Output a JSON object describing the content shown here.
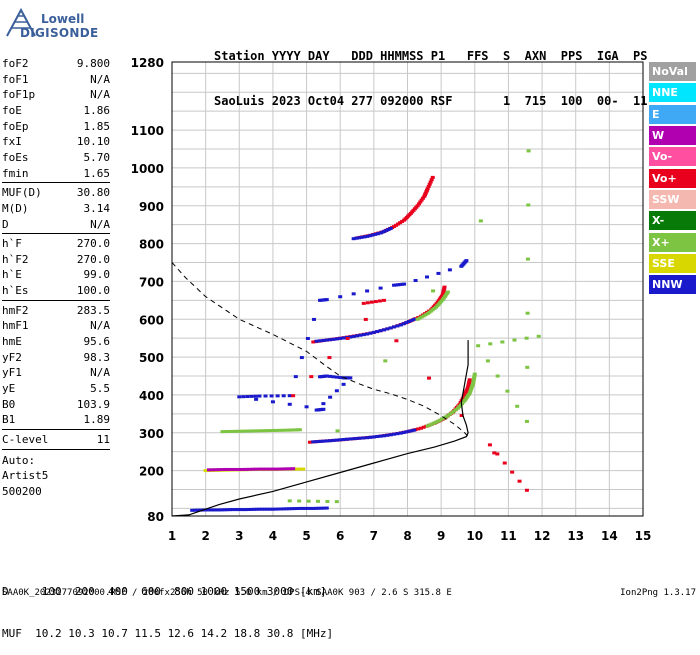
{
  "logo": {
    "line1": "Lowell",
    "line2": "DIGISONDE"
  },
  "header": {
    "row1": "Station YYYY DAY   DDD HHMMSS P1   FFS  S  AXN  PPS  IGA  PS",
    "row2": "SaoLuis 2023 Oct04 277 092000 RSF       1  715  100  00-  11"
  },
  "params": [
    {
      "k": "foF2",
      "v": "9.800"
    },
    {
      "k": "foF1",
      "v": "N/A"
    },
    {
      "k": "foF1p",
      "v": "N/A"
    },
    {
      "k": "foE",
      "v": "1.86"
    },
    {
      "k": "foEp",
      "v": "1.85"
    },
    {
      "k": "fxI",
      "v": "10.10"
    },
    {
      "k": "foEs",
      "v": "5.70"
    },
    {
      "k": "fmin",
      "v": "1.65"
    },
    {
      "k": "MUF(D)",
      "v": "30.80"
    },
    {
      "k": "M(D)",
      "v": "3.14"
    },
    {
      "k": "D",
      "v": "N/A"
    },
    {
      "k": "h`F",
      "v": "270.0"
    },
    {
      "k": "h`F2",
      "v": "270.0"
    },
    {
      "k": "h`E",
      "v": "99.0"
    },
    {
      "k": "h`Es",
      "v": "100.0"
    },
    {
      "k": "hmF2",
      "v": "283.5"
    },
    {
      "k": "hmF1",
      "v": "N/A"
    },
    {
      "k": "hmE",
      "v": "95.6"
    },
    {
      "k": "yF2",
      "v": "98.3"
    },
    {
      "k": "yF1",
      "v": "N/A"
    },
    {
      "k": "yE",
      "v": "5.5"
    },
    {
      "k": "B0",
      "v": "103.9"
    },
    {
      "k": "B1",
      "v": "1.89"
    },
    {
      "k": "C-level",
      "v": "11"
    }
  ],
  "auto": {
    "line1": "Auto:",
    "line2": "Artist5",
    "line3": "500200"
  },
  "legend": [
    {
      "label": "NoVal",
      "color": "#a0a0a0"
    },
    {
      "label": "NNE",
      "color": "#00e6ff"
    },
    {
      "label": "E",
      "color": "#3fa9f5"
    },
    {
      "label": "W",
      "color": "#b000b0"
    },
    {
      "label": "Vo-",
      "color": "#ff4fa0"
    },
    {
      "label": "Vo+",
      "color": "#e8001c"
    },
    {
      "label": "SSW",
      "color": "#f5b8b0"
    },
    {
      "label": "X-",
      "color": "#087a08"
    },
    {
      "label": "X+",
      "color": "#7cc442"
    },
    {
      "label": "SSE",
      "color": "#d8d800"
    },
    {
      "label": "NNW",
      "color": "#1a1acc"
    }
  ],
  "bottom": {
    "row1": "D     100  200  400  600  800 1000 1500 3000 [km]",
    "row2": "MUF  10.2 10.3 10.7 11.5 12.6 14.2 18.8 30.8 [MHz]"
  },
  "footer": {
    "left": "SAA0K_2023277092000.RSF / 280fx256h 50 kHz 5.0 km / DPS-4 SAA0K 903 / 2.6 S 315.8 E",
    "right": "Ion2Png 1.3.17"
  },
  "chart_data": {
    "type": "scatter",
    "xlim": [
      1,
      15
    ],
    "ylim": [
      80,
      1280
    ],
    "x_ticks": [
      1,
      2,
      3,
      4,
      5,
      6,
      7,
      8,
      9,
      10,
      11,
      12,
      13,
      14,
      15
    ],
    "y_ticks": [
      80,
      200,
      300,
      400,
      500,
      600,
      700,
      800,
      900,
      1000,
      1100,
      1280
    ],
    "grid": true,
    "profile_curve": [
      [
        1,
        80
      ],
      [
        1.5,
        83
      ],
      [
        1.9,
        95
      ],
      [
        2.4,
        110
      ],
      [
        3,
        125
      ],
      [
        4,
        145
      ],
      [
        5,
        170
      ],
      [
        6,
        195
      ],
      [
        7,
        220
      ],
      [
        8,
        245
      ],
      [
        8.8,
        262
      ],
      [
        9.4,
        278
      ],
      [
        9.75,
        290
      ],
      [
        9.8,
        300
      ],
      [
        9.75,
        320
      ],
      [
        9.65,
        345
      ],
      [
        9.6,
        380
      ],
      [
        9.7,
        430
      ],
      [
        9.8,
        480
      ],
      [
        9.8,
        545
      ]
    ],
    "mode_curve": [
      [
        1,
        750
      ],
      [
        1.4,
        710
      ],
      [
        2,
        660
      ],
      [
        3,
        600
      ],
      [
        4,
        560
      ],
      [
        5,
        515
      ],
      [
        5.6,
        475
      ],
      [
        6,
        450
      ],
      [
        6.6,
        428
      ],
      [
        7,
        415
      ],
      [
        7.5,
        403
      ],
      [
        8,
        388
      ],
      [
        8.5,
        370
      ],
      [
        9,
        345
      ],
      [
        9.4,
        322
      ],
      [
        9.7,
        300
      ],
      [
        9.8,
        290
      ]
    ],
    "traces": [
      {
        "name": "F2-1",
        "color": "#e8001c",
        "points": [
          [
            5.1,
            275
          ],
          [
            5.5,
            278
          ],
          [
            6,
            281
          ],
          [
            6.5,
            285
          ],
          [
            7,
            289
          ],
          [
            7.5,
            295
          ],
          [
            8,
            303
          ],
          [
            8.4,
            312
          ],
          [
            8.8,
            325
          ],
          [
            9.1,
            338
          ],
          [
            9.35,
            355
          ],
          [
            9.55,
            375
          ],
          [
            9.7,
            400
          ],
          [
            9.8,
            420
          ],
          [
            9.85,
            440
          ]
        ]
      },
      {
        "name": "F2-1-x",
        "color": "#7cc442",
        "points": [
          [
            8.6,
            318
          ],
          [
            8.9,
            330
          ],
          [
            9.2,
            345
          ],
          [
            9.5,
            365
          ],
          [
            9.7,
            385
          ],
          [
            9.85,
            405
          ],
          [
            9.95,
            430
          ],
          [
            10,
            455
          ]
        ]
      },
      {
        "name": "F2-1-nnw",
        "color": "#1a1acc",
        "points": [
          [
            5.2,
            276
          ],
          [
            5.7,
            279
          ],
          [
            6.2,
            283
          ],
          [
            6.8,
            287
          ],
          [
            7.3,
            292
          ],
          [
            7.8,
            299
          ],
          [
            8.2,
            307
          ]
        ]
      },
      {
        "name": "F2-2",
        "color": "#e8001c",
        "points": [
          [
            5.2,
            540
          ],
          [
            5.6,
            545
          ],
          [
            6,
            550
          ],
          [
            6.5,
            557
          ],
          [
            7,
            565
          ],
          [
            7.5,
            577
          ],
          [
            8,
            592
          ],
          [
            8.4,
            608
          ],
          [
            8.7,
            625
          ],
          [
            8.9,
            645
          ],
          [
            9.05,
            665
          ],
          [
            9.1,
            685
          ]
        ]
      },
      {
        "name": "F2-2-nnw",
        "color": "#1a1acc",
        "points": [
          [
            5.3,
            542
          ],
          [
            5.8,
            547
          ],
          [
            6.3,
            553
          ],
          [
            6.8,
            561
          ],
          [
            7.3,
            572
          ],
          [
            7.8,
            585
          ],
          [
            8.2,
            600
          ]
        ]
      },
      {
        "name": "F2-2-x",
        "color": "#7cc442",
        "points": [
          [
            8.3,
            600
          ],
          [
            8.6,
            615
          ],
          [
            8.85,
            632
          ],
          [
            9.05,
            652
          ],
          [
            9.2,
            672
          ]
        ]
      },
      {
        "name": "F2-3",
        "color": "#e8001c",
        "points": [
          [
            6.5,
            815
          ],
          [
            6.9,
            822
          ],
          [
            7.3,
            832
          ],
          [
            7.6,
            845
          ],
          [
            7.9,
            862
          ],
          [
            8.1,
            880
          ],
          [
            8.3,
            900
          ],
          [
            8.5,
            925
          ],
          [
            8.6,
            945
          ],
          [
            8.75,
            975
          ]
        ]
      },
      {
        "name": "F2-3-nnw",
        "color": "#1a1acc",
        "points": [
          [
            6.4,
            813
          ],
          [
            6.8,
            819
          ],
          [
            7.2,
            828
          ],
          [
            7.5,
            840
          ]
        ]
      },
      {
        "name": "E-layer",
        "color": "#1a1acc",
        "points": [
          [
            1.6,
            95
          ],
          [
            2,
            96
          ],
          [
            2.4,
            96
          ],
          [
            2.8,
            97
          ],
          [
            3.2,
            97
          ],
          [
            3.6,
            98
          ],
          [
            4,
            98
          ],
          [
            4.4,
            99
          ],
          [
            4.8,
            100
          ],
          [
            5.2,
            100
          ],
          [
            5.6,
            101
          ]
        ]
      },
      {
        "name": "Es",
        "color": "#d8d800",
        "points": [
          [
            2,
            200
          ],
          [
            2.5,
            201
          ],
          [
            3,
            202
          ],
          [
            3.5,
            203
          ],
          [
            4,
            203
          ],
          [
            4.5,
            204
          ],
          [
            4.9,
            204
          ]
        ]
      },
      {
        "name": "Es-2",
        "color": "#b000b0",
        "points": [
          [
            2.1,
            202
          ],
          [
            2.6,
            203
          ],
          [
            3.1,
            203
          ],
          [
            3.6,
            204
          ],
          [
            4.1,
            204
          ],
          [
            4.6,
            205
          ]
        ]
      },
      {
        "name": "Es2-300",
        "color": "#7cc442",
        "points": [
          [
            2.5,
            303
          ],
          [
            3,
            304
          ],
          [
            3.5,
            305
          ],
          [
            4,
            306
          ],
          [
            4.5,
            307
          ],
          [
            4.8,
            308
          ]
        ]
      },
      {
        "name": "scatter-1",
        "color": "#1a1acc",
        "points": [
          [
            5.4,
            448
          ],
          [
            5.6,
            450
          ],
          [
            6.1,
            445
          ],
          [
            6.3,
            445
          ],
          [
            5.3,
            360
          ],
          [
            5.5,
            362
          ],
          [
            3,
            395
          ],
          [
            3.6,
            397
          ],
          [
            4.5,
            398
          ],
          [
            5.4,
            650
          ],
          [
            5.6,
            652
          ],
          [
            7.6,
            690
          ],
          [
            7.9,
            693
          ],
          [
            9.6,
            740
          ],
          [
            9.75,
            755
          ]
        ]
      },
      {
        "name": "scatter-2",
        "color": "#e8001c",
        "points": [
          [
            10.45,
            268
          ],
          [
            11.55,
            148
          ],
          [
            6.7,
            642
          ],
          [
            7.3,
            650
          ],
          [
            4.6,
            398
          ]
        ]
      },
      {
        "name": "scatter-3",
        "color": "#7cc442",
        "points": [
          [
            11.9,
            555
          ],
          [
            10.1,
            530
          ],
          [
            11.55,
            330
          ],
          [
            11.6,
            1045
          ],
          [
            4.5,
            120
          ],
          [
            5.9,
            118
          ]
        ]
      }
    ]
  }
}
